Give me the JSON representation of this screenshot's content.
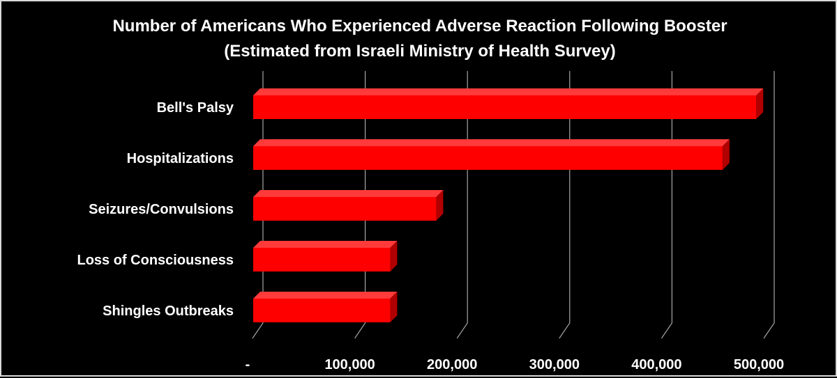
{
  "chart_data": {
    "type": "bar",
    "orientation": "horizontal",
    "title_line1": "Number of Americans Who Experienced Adverse Reaction Following Booster",
    "title_line2": "(Estimated from Israeli Ministry of Health Survey)",
    "categories": [
      "Bell's Palsy",
      "Hospitalizations",
      "Seizures/Convulsions",
      "Loss of Consciousness",
      "Shingles Outbreaks"
    ],
    "values": [
      492000,
      459000,
      179000,
      134000,
      134000
    ],
    "xlim": [
      0,
      500000
    ],
    "x_ticks": [
      0,
      100000,
      200000,
      300000,
      400000,
      500000
    ],
    "x_tick_labels": [
      "-",
      "100,000",
      "200,000",
      "300,000",
      "400,000",
      "500,000"
    ],
    "grid": true,
    "legend": "none",
    "colors": {
      "bar_front": "#ff0000",
      "bar_top": "#ff3a3a",
      "bar_side": "#b00000",
      "background": "#000000",
      "text": "#ffffff",
      "grid": "#a6a6a6"
    }
  }
}
